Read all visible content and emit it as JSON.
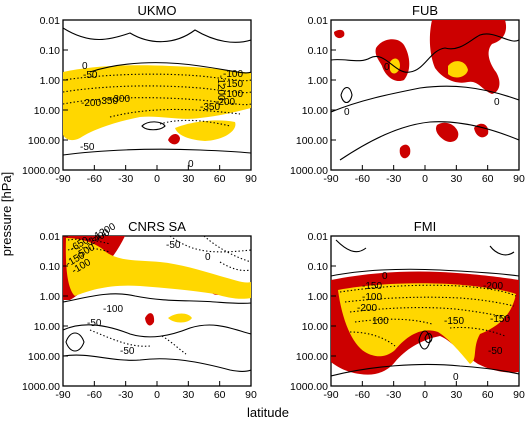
{
  "colors": {
    "positive_fill": "#cc0000",
    "high_fill": "#ffd700",
    "contour": "#000000",
    "background": "#ffffff"
  },
  "figure": {
    "ylabel": "pressure [hPa]",
    "xlabel": "latitude"
  },
  "chart_data": [
    {
      "type": "contour",
      "title": "UKMO",
      "x_ticks": [
        "-90",
        "-60",
        "-30",
        "0",
        "30",
        "60",
        "90"
      ],
      "y_ticks": [
        "0.01",
        "0.10",
        "1.00",
        "10.00",
        "100.00",
        "1000.00"
      ],
      "xlim": [
        -90,
        90
      ],
      "ylim": [
        1000,
        0.01
      ],
      "yscale": "log",
      "contour_labels": [
        "0",
        "-50",
        "-200",
        "-350",
        "-300",
        "-1200",
        "-100",
        "-150",
        "-100",
        "-200",
        "-350",
        "-50",
        "0"
      ],
      "features": [
        {
          "kind": "fill",
          "color": "high",
          "lat": [
            -90,
            80
          ],
          "p": [
            0.7,
            50
          ]
        },
        {
          "kind": "fill",
          "color": "positive",
          "lat": [
            22,
            32
          ],
          "p": [
            50,
            80
          ]
        },
        {
          "kind": "contour",
          "style": "dashed",
          "lat": [
            -90,
            90
          ],
          "p": [
            0.7,
            25
          ],
          "levels": "negative"
        },
        {
          "kind": "contour",
          "style": "solid",
          "level": 0,
          "lat": [
            -90,
            90
          ],
          "p": [
            0.01,
            1
          ]
        }
      ]
    },
    {
      "type": "contour",
      "title": "FUB",
      "x_ticks": [
        "-90",
        "-60",
        "-30",
        "0",
        "30",
        "60",
        "90"
      ],
      "y_ticks": [
        "0.01",
        "0.10",
        "1.00",
        "10.00",
        "100.00",
        "1000.00"
      ],
      "xlim": [
        -90,
        90
      ],
      "ylim": [
        1000,
        0.01
      ],
      "yscale": "log",
      "contour_labels": [
        "0",
        "0",
        "0"
      ],
      "features": [
        {
          "kind": "fill",
          "color": "positive",
          "lat": [
            -45,
            -5
          ],
          "p": [
            0.15,
            1.5
          ]
        },
        {
          "kind": "fill",
          "color": "positive",
          "lat": [
            15,
            80
          ],
          "p": [
            0.01,
            5
          ]
        },
        {
          "kind": "fill",
          "color": "high",
          "lat": [
            -30,
            -20
          ],
          "p": [
            0.4,
            1.0
          ]
        },
        {
          "kind": "fill",
          "color": "high",
          "lat": [
            30,
            45
          ],
          "p": [
            0.5,
            1.5
          ]
        },
        {
          "kind": "contour",
          "style": "solid",
          "level": 0,
          "lat": [
            -90,
            90
          ],
          "p": [
            0.01,
            1000
          ]
        }
      ]
    },
    {
      "type": "contour",
      "title": "CNRS SA",
      "x_ticks": [
        "-90",
        "-60",
        "-30",
        "0",
        "30",
        "60",
        "90"
      ],
      "y_ticks": [
        "0.01",
        "0.10",
        "1.00",
        "10.00",
        "100.00",
        "1000.00"
      ],
      "xlim": [
        -90,
        90
      ],
      "ylim": [
        1000,
        0.01
      ],
      "yscale": "log",
      "contour_labels": [
        "-2400",
        "-1200",
        "-650",
        "-500",
        "-150",
        "-100",
        "-50",
        "0",
        "-50",
        "-100",
        "-50"
      ],
      "features": [
        {
          "kind": "fill",
          "color": "positive",
          "lat": [
            -90,
            -45
          ],
          "p": [
            0.01,
            2
          ]
        },
        {
          "kind": "fill",
          "color": "high",
          "lat": [
            -88,
            75
          ],
          "p": [
            0.02,
            1.5
          ]
        },
        {
          "kind": "contour",
          "style": "solid",
          "level": 0,
          "lat": [
            -90,
            90
          ],
          "p": [
            0.01,
            1000
          ]
        }
      ]
    },
    {
      "type": "contour",
      "title": "FMI",
      "x_ticks": [
        "-90",
        "-60",
        "-30",
        "0",
        "30",
        "60",
        "90"
      ],
      "y_ticks": [
        "0.01",
        "0.10",
        "1.00",
        "10.00",
        "100.00",
        "1000.00"
      ],
      "xlim": [
        -90,
        90
      ],
      "ylim": [
        1000,
        0.01
      ],
      "yscale": "log",
      "contour_labels": [
        "0",
        "-150",
        "-200",
        "-100",
        "-200",
        "-150",
        "100",
        "-50",
        "-150",
        "0"
      ],
      "features": [
        {
          "kind": "fill",
          "color": "positive",
          "lat": [
            -90,
            90
          ],
          "p": [
            0.7,
            300
          ]
        },
        {
          "kind": "fill",
          "color": "high",
          "lat": [
            -85,
            85
          ],
          "p": [
            1,
            200
          ]
        },
        {
          "kind": "contour",
          "style": "solid",
          "level": 0,
          "lat": [
            -90,
            90
          ],
          "p": [
            0.01,
            1000
          ]
        }
      ]
    }
  ]
}
